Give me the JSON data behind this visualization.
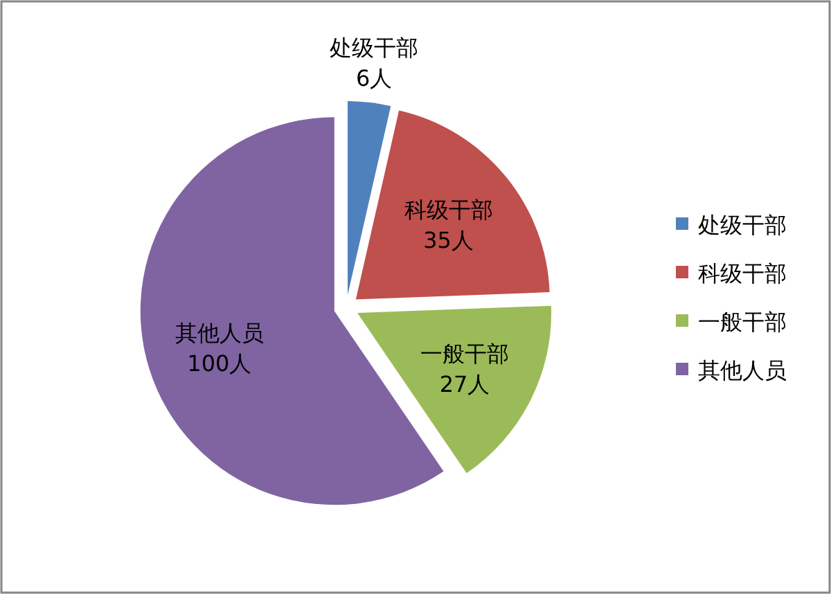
{
  "chart_data": {
    "type": "pie",
    "categories": [
      "处级干部",
      "科级干部",
      "一般干部",
      "其他人员"
    ],
    "values": [
      6,
      35,
      27,
      100
    ],
    "value_labels": [
      "6人",
      "35人",
      "27人",
      "100人"
    ],
    "colors": [
      "#4f81bd",
      "#c0504d",
      "#9bbb59",
      "#8064a2"
    ],
    "legend": "right"
  }
}
